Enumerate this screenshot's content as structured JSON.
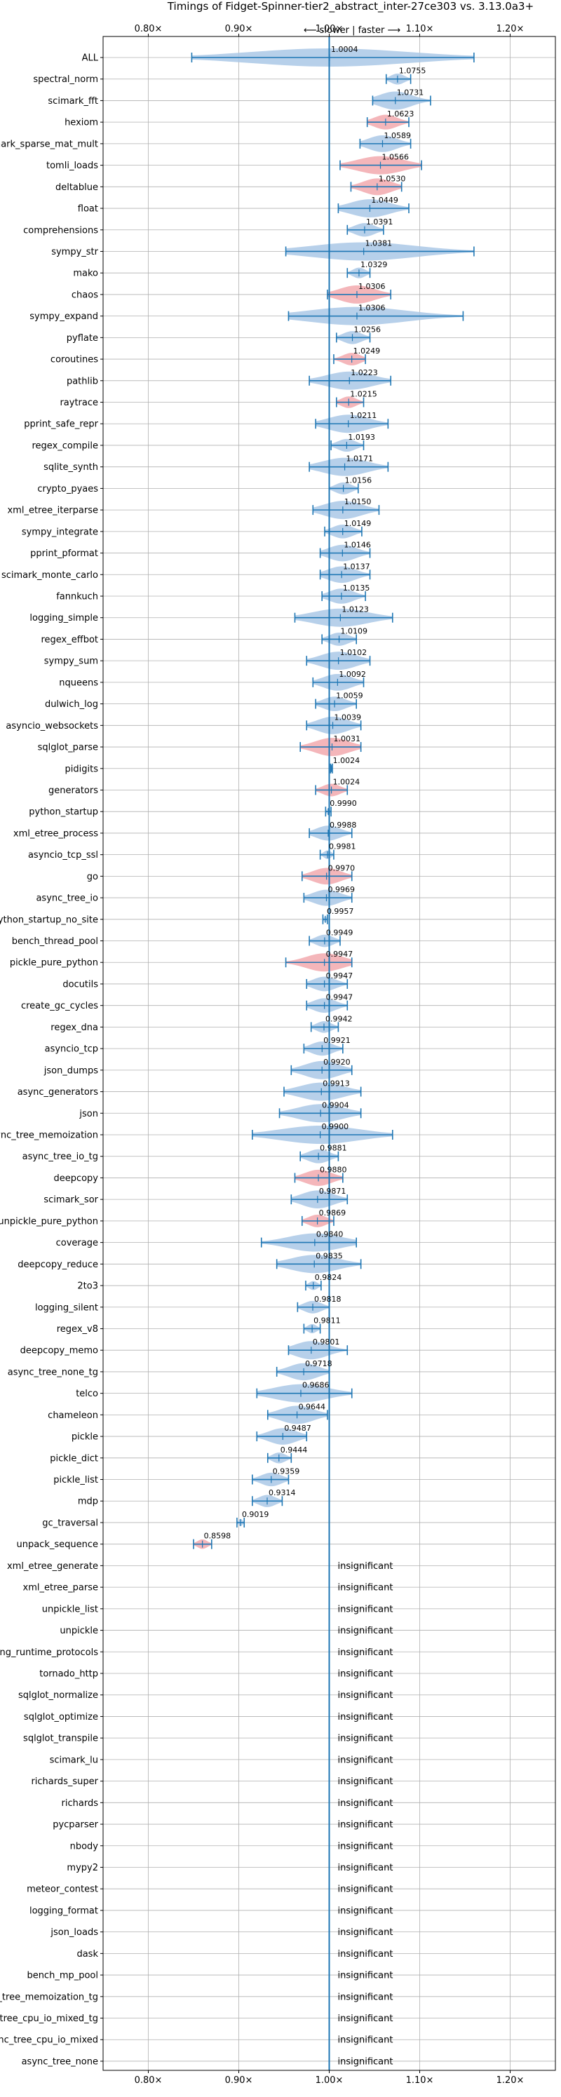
{
  "chart_data": {
    "type": "violin",
    "title": "Timings of Fidget-Spinner-tier2_abstract_inter-27ce303 vs. 3.13.0a3+",
    "direction_label": "⟵ slower | faster ⟶",
    "x_tick_labels": [
      "0.80×",
      "0.90×",
      "1.00×",
      "1.10×",
      "1.20×"
    ],
    "x_ticks": [
      0.8,
      0.9,
      1.0,
      1.1,
      1.2
    ],
    "xlim": [
      0.75,
      1.25
    ],
    "reference_line": 1.0,
    "insignificant_label": "insignificant",
    "colors": {
      "faster": "#aac8e6",
      "slower": "#f2a9ae",
      "line": "#1f77b4"
    },
    "benchmarks": [
      {
        "name": "ALL",
        "value": 1.0004,
        "label": "1.0004",
        "min": 0.848,
        "max": 1.16,
        "color": "blue"
      },
      {
        "name": "spectral_norm",
        "value": 1.0755,
        "label": "1.0755",
        "min": 1.063,
        "max": 1.09,
        "color": "blue"
      },
      {
        "name": "scimark_fft",
        "value": 1.0731,
        "label": "1.0731",
        "min": 1.048,
        "max": 1.112,
        "color": "blue"
      },
      {
        "name": "hexiom",
        "value": 1.0623,
        "label": "1.0623",
        "min": 1.042,
        "max": 1.088,
        "color": "red"
      },
      {
        "name": "scimark_sparse_mat_mult",
        "value": 1.0589,
        "label": "1.0589",
        "min": 1.034,
        "max": 1.09,
        "color": "blue"
      },
      {
        "name": "tomli_loads",
        "value": 1.0566,
        "label": "1.0566",
        "min": 1.012,
        "max": 1.102,
        "color": "red"
      },
      {
        "name": "deltablue",
        "value": 1.053,
        "label": "1.0530",
        "min": 1.024,
        "max": 1.08,
        "color": "red"
      },
      {
        "name": "float",
        "value": 1.0449,
        "label": "1.0449",
        "min": 1.01,
        "max": 1.088,
        "color": "blue"
      },
      {
        "name": "comprehensions",
        "value": 1.0391,
        "label": "1.0391",
        "min": 1.02,
        "max": 1.06,
        "color": "blue"
      },
      {
        "name": "sympy_str",
        "value": 1.0381,
        "label": "1.0381",
        "min": 0.952,
        "max": 1.16,
        "color": "blue"
      },
      {
        "name": "mako",
        "value": 1.0329,
        "label": "1.0329",
        "min": 1.02,
        "max": 1.045,
        "color": "blue"
      },
      {
        "name": "chaos",
        "value": 1.0306,
        "label": "1.0306",
        "min": 0.998,
        "max": 1.068,
        "color": "red"
      },
      {
        "name": "sympy_expand",
        "value": 1.0306,
        "label": "1.0306",
        "min": 0.955,
        "max": 1.148,
        "color": "blue"
      },
      {
        "name": "pyflate",
        "value": 1.0256,
        "label": "1.0256",
        "min": 1.008,
        "max": 1.045,
        "color": "blue"
      },
      {
        "name": "coroutines",
        "value": 1.0249,
        "label": "1.0249",
        "min": 1.005,
        "max": 1.04,
        "color": "red"
      },
      {
        "name": "pathlib",
        "value": 1.0223,
        "label": "1.0223",
        "min": 0.978,
        "max": 1.068,
        "color": "blue"
      },
      {
        "name": "raytrace",
        "value": 1.0215,
        "label": "1.0215",
        "min": 1.008,
        "max": 1.038,
        "color": "red"
      },
      {
        "name": "pprint_safe_repr",
        "value": 1.0211,
        "label": "1.0211",
        "min": 0.985,
        "max": 1.065,
        "color": "blue"
      },
      {
        "name": "regex_compile",
        "value": 1.0193,
        "label": "1.0193",
        "min": 1.002,
        "max": 1.038,
        "color": "blue"
      },
      {
        "name": "sqlite_synth",
        "value": 1.0171,
        "label": "1.0171",
        "min": 0.978,
        "max": 1.065,
        "color": "blue"
      },
      {
        "name": "crypto_pyaes",
        "value": 1.0156,
        "label": "1.0156",
        "min": 1.0,
        "max": 1.032,
        "color": "blue"
      },
      {
        "name": "xml_etree_iterparse",
        "value": 1.015,
        "label": "1.0150",
        "min": 0.982,
        "max": 1.055,
        "color": "blue"
      },
      {
        "name": "sympy_integrate",
        "value": 1.0149,
        "label": "1.0149",
        "min": 0.995,
        "max": 1.036,
        "color": "blue"
      },
      {
        "name": "pprint_pformat",
        "value": 1.0146,
        "label": "1.0146",
        "min": 0.99,
        "max": 1.045,
        "color": "blue"
      },
      {
        "name": "scimark_monte_carlo",
        "value": 1.0137,
        "label": "1.0137",
        "min": 0.99,
        "max": 1.045,
        "color": "blue"
      },
      {
        "name": "fannkuch",
        "value": 1.0135,
        "label": "1.0135",
        "min": 0.992,
        "max": 1.04,
        "color": "blue"
      },
      {
        "name": "logging_simple",
        "value": 1.0123,
        "label": "1.0123",
        "min": 0.962,
        "max": 1.07,
        "color": "blue"
      },
      {
        "name": "regex_effbot",
        "value": 1.0109,
        "label": "1.0109",
        "min": 0.992,
        "max": 1.03,
        "color": "blue"
      },
      {
        "name": "sympy_sum",
        "value": 1.0102,
        "label": "1.0102",
        "min": 0.975,
        "max": 1.045,
        "color": "blue"
      },
      {
        "name": "nqueens",
        "value": 1.0092,
        "label": "1.0092",
        "min": 0.982,
        "max": 1.038,
        "color": "blue"
      },
      {
        "name": "dulwich_log",
        "value": 1.0059,
        "label": "1.0059",
        "min": 0.985,
        "max": 1.03,
        "color": "blue"
      },
      {
        "name": "asyncio_websockets",
        "value": 1.0039,
        "label": "1.0039",
        "min": 0.975,
        "max": 1.035,
        "color": "blue"
      },
      {
        "name": "sqlglot_parse",
        "value": 1.0031,
        "label": "1.0031",
        "min": 0.968,
        "max": 1.035,
        "color": "red"
      },
      {
        "name": "pidigits",
        "value": 1.0024,
        "label": "1.0024",
        "min": 1.0015,
        "max": 1.0035,
        "color": "blue"
      },
      {
        "name": "generators",
        "value": 1.0024,
        "label": "1.0024",
        "min": 0.985,
        "max": 1.02,
        "color": "red"
      },
      {
        "name": "python_startup",
        "value": 0.999,
        "label": "0.9990",
        "min": 0.996,
        "max": 1.002,
        "color": "blue"
      },
      {
        "name": "xml_etree_process",
        "value": 0.9988,
        "label": "0.9988",
        "min": 0.978,
        "max": 1.025,
        "color": "blue"
      },
      {
        "name": "asyncio_tcp_ssl",
        "value": 0.9981,
        "label": "0.9981",
        "min": 0.99,
        "max": 1.005,
        "color": "blue"
      },
      {
        "name": "go",
        "value": 0.997,
        "label": "0.9970",
        "min": 0.97,
        "max": 1.025,
        "color": "red"
      },
      {
        "name": "async_tree_io",
        "value": 0.9969,
        "label": "0.9969",
        "min": 0.972,
        "max": 1.025,
        "color": "blue"
      },
      {
        "name": "python_startup_no_site",
        "value": 0.9957,
        "label": "0.9957",
        "min": 0.993,
        "max": 0.998,
        "color": "blue"
      },
      {
        "name": "bench_thread_pool",
        "value": 0.9949,
        "label": "0.9949",
        "min": 0.978,
        "max": 1.012,
        "color": "blue"
      },
      {
        "name": "pickle_pure_python",
        "value": 0.9947,
        "label": "0.9947",
        "min": 0.952,
        "max": 1.025,
        "color": "red"
      },
      {
        "name": "docutils",
        "value": 0.9947,
        "label": "0.9947",
        "min": 0.975,
        "max": 1.02,
        "color": "blue"
      },
      {
        "name": "create_gc_cycles",
        "value": 0.9947,
        "label": "0.9947",
        "min": 0.975,
        "max": 1.02,
        "color": "blue"
      },
      {
        "name": "regex_dna",
        "value": 0.9942,
        "label": "0.9942",
        "min": 0.98,
        "max": 1.01,
        "color": "blue"
      },
      {
        "name": "asyncio_tcp",
        "value": 0.9921,
        "label": "0.9921",
        "min": 0.972,
        "max": 1.015,
        "color": "blue"
      },
      {
        "name": "json_dumps",
        "value": 0.992,
        "label": "0.9920",
        "min": 0.958,
        "max": 1.025,
        "color": "blue"
      },
      {
        "name": "async_generators",
        "value": 0.9913,
        "label": "0.9913",
        "min": 0.95,
        "max": 1.035,
        "color": "blue"
      },
      {
        "name": "json",
        "value": 0.9904,
        "label": "0.9904",
        "min": 0.945,
        "max": 1.035,
        "color": "blue"
      },
      {
        "name": "async_tree_memoization",
        "value": 0.99,
        "label": "0.9900",
        "min": 0.915,
        "max": 1.07,
        "color": "blue"
      },
      {
        "name": "async_tree_io_tg",
        "value": 0.9881,
        "label": "0.9881",
        "min": 0.968,
        "max": 1.01,
        "color": "blue"
      },
      {
        "name": "deepcopy",
        "value": 0.988,
        "label": "0.9880",
        "min": 0.962,
        "max": 1.015,
        "color": "red"
      },
      {
        "name": "scimark_sor",
        "value": 0.9871,
        "label": "0.9871",
        "min": 0.958,
        "max": 1.02,
        "color": "blue"
      },
      {
        "name": "unpickle_pure_python",
        "value": 0.9869,
        "label": "0.9869",
        "min": 0.97,
        "max": 1.005,
        "color": "red"
      },
      {
        "name": "coverage",
        "value": 0.984,
        "label": "0.9840",
        "min": 0.925,
        "max": 1.03,
        "color": "blue"
      },
      {
        "name": "deepcopy_reduce",
        "value": 0.9835,
        "label": "0.9835",
        "min": 0.942,
        "max": 1.035,
        "color": "blue"
      },
      {
        "name": "2to3",
        "value": 0.9824,
        "label": "0.9824",
        "min": 0.974,
        "max": 0.991,
        "color": "blue"
      },
      {
        "name": "logging_silent",
        "value": 0.9818,
        "label": "0.9818",
        "min": 0.965,
        "max": 1.0,
        "color": "blue"
      },
      {
        "name": "regex_v8",
        "value": 0.9811,
        "label": "0.9811",
        "min": 0.972,
        "max": 0.99,
        "color": "blue"
      },
      {
        "name": "deepcopy_memo",
        "value": 0.9801,
        "label": "0.9801",
        "min": 0.955,
        "max": 1.02,
        "color": "blue"
      },
      {
        "name": "async_tree_none_tg",
        "value": 0.9718,
        "label": "0.9718",
        "min": 0.942,
        "max": 1.0,
        "color": "blue"
      },
      {
        "name": "telco",
        "value": 0.9686,
        "label": "0.9686",
        "min": 0.92,
        "max": 1.025,
        "color": "blue"
      },
      {
        "name": "chameleon",
        "value": 0.9644,
        "label": "0.9644",
        "min": 0.932,
        "max": 0.998,
        "color": "blue"
      },
      {
        "name": "pickle",
        "value": 0.9487,
        "label": "0.9487",
        "min": 0.92,
        "max": 0.975,
        "color": "blue"
      },
      {
        "name": "pickle_dict",
        "value": 0.9444,
        "label": "0.9444",
        "min": 0.932,
        "max": 0.958,
        "color": "blue"
      },
      {
        "name": "pickle_list",
        "value": 0.9359,
        "label": "0.9359",
        "min": 0.915,
        "max": 0.955,
        "color": "blue"
      },
      {
        "name": "mdp",
        "value": 0.9314,
        "label": "0.9314",
        "min": 0.915,
        "max": 0.948,
        "color": "blue"
      },
      {
        "name": "gc_traversal",
        "value": 0.9019,
        "label": "0.9019",
        "min": 0.898,
        "max": 0.906,
        "color": "blue"
      },
      {
        "name": "unpack_sequence",
        "value": 0.8598,
        "label": "0.8598",
        "min": 0.85,
        "max": 0.87,
        "color": "red"
      },
      {
        "name": "xml_etree_generate",
        "insignificant": true
      },
      {
        "name": "xml_etree_parse",
        "insignificant": true
      },
      {
        "name": "unpickle_list",
        "insignificant": true
      },
      {
        "name": "unpickle",
        "insignificant": true
      },
      {
        "name": "typing_runtime_protocols",
        "insignificant": true
      },
      {
        "name": "tornado_http",
        "insignificant": true
      },
      {
        "name": "sqlglot_normalize",
        "insignificant": true
      },
      {
        "name": "sqlglot_optimize",
        "insignificant": true
      },
      {
        "name": "sqlglot_transpile",
        "insignificant": true
      },
      {
        "name": "scimark_lu",
        "insignificant": true
      },
      {
        "name": "richards_super",
        "insignificant": true
      },
      {
        "name": "richards",
        "insignificant": true
      },
      {
        "name": "pycparser",
        "insignificant": true
      },
      {
        "name": "nbody",
        "insignificant": true
      },
      {
        "name": "mypy2",
        "insignificant": true
      },
      {
        "name": "meteor_contest",
        "insignificant": true
      },
      {
        "name": "logging_format",
        "insignificant": true
      },
      {
        "name": "json_loads",
        "insignificant": true
      },
      {
        "name": "dask",
        "insignificant": true
      },
      {
        "name": "bench_mp_pool",
        "insignificant": true
      },
      {
        "name": "async_tree_memoization_tg",
        "insignificant": true
      },
      {
        "name": "async_tree_cpu_io_mixed_tg",
        "insignificant": true
      },
      {
        "name": "async_tree_cpu_io_mixed",
        "insignificant": true
      },
      {
        "name": "async_tree_none",
        "insignificant": true
      }
    ]
  }
}
